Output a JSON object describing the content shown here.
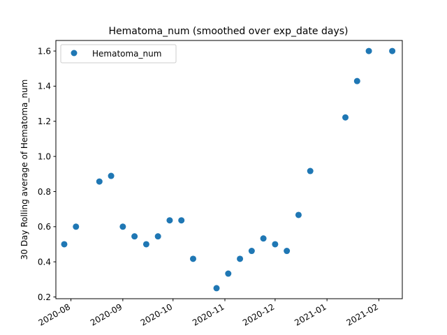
{
  "chart_data": {
    "type": "scatter",
    "title": "Hematoma_num (smoothed over exp_date days)",
    "xlabel": "",
    "ylabel": "30 Day Rolling average of Hematoma_num",
    "legend": {
      "placement": "top-left",
      "entries": [
        "Hematoma_num"
      ]
    },
    "grid": false,
    "x_tick_labels": [
      "2020-08",
      "2020-09",
      "2020-10",
      "2020-11",
      "2020-12",
      "2021-01",
      "2021-02"
    ],
    "x_tick_dates": [
      "2020-08-01",
      "2020-09-01",
      "2020-10-01",
      "2020-11-01",
      "2020-12-01",
      "2021-01-01",
      "2021-02-01"
    ],
    "y_tick_labels": [
      "0.2",
      "0.4",
      "0.6",
      "0.8",
      "1.0",
      "1.2",
      "1.4",
      "1.6"
    ],
    "ylim": [
      0.19,
      1.66
    ],
    "xlim": [
      "2020-07-23",
      "2021-02-15"
    ],
    "color": "#1f77b4",
    "series": [
      {
        "name": "Hematoma_num",
        "points": [
          {
            "x": "2020-07-28",
            "y": 0.5
          },
          {
            "x": "2020-08-04",
            "y": 0.6
          },
          {
            "x": "2020-08-18",
            "y": 0.857
          },
          {
            "x": "2020-08-25",
            "y": 0.889
          },
          {
            "x": "2020-09-01",
            "y": 0.6
          },
          {
            "x": "2020-09-08",
            "y": 0.545
          },
          {
            "x": "2020-09-15",
            "y": 0.5
          },
          {
            "x": "2020-09-22",
            "y": 0.545
          },
          {
            "x": "2020-09-29",
            "y": 0.636
          },
          {
            "x": "2020-10-06",
            "y": 0.636
          },
          {
            "x": "2020-10-13",
            "y": 0.417
          },
          {
            "x": "2020-10-27",
            "y": 0.25
          },
          {
            "x": "2020-11-03",
            "y": 0.333
          },
          {
            "x": "2020-11-10",
            "y": 0.417
          },
          {
            "x": "2020-11-17",
            "y": 0.462
          },
          {
            "x": "2020-11-24",
            "y": 0.533
          },
          {
            "x": "2020-12-01",
            "y": 0.5
          },
          {
            "x": "2020-12-08",
            "y": 0.462
          },
          {
            "x": "2020-12-15",
            "y": 0.667
          },
          {
            "x": "2020-12-22",
            "y": 0.917
          },
          {
            "x": "2021-01-12",
            "y": 1.222
          },
          {
            "x": "2021-01-19",
            "y": 1.429
          },
          {
            "x": "2021-01-26",
            "y": 1.6
          },
          {
            "x": "2021-02-09",
            "y": 1.6
          }
        ]
      }
    ]
  }
}
